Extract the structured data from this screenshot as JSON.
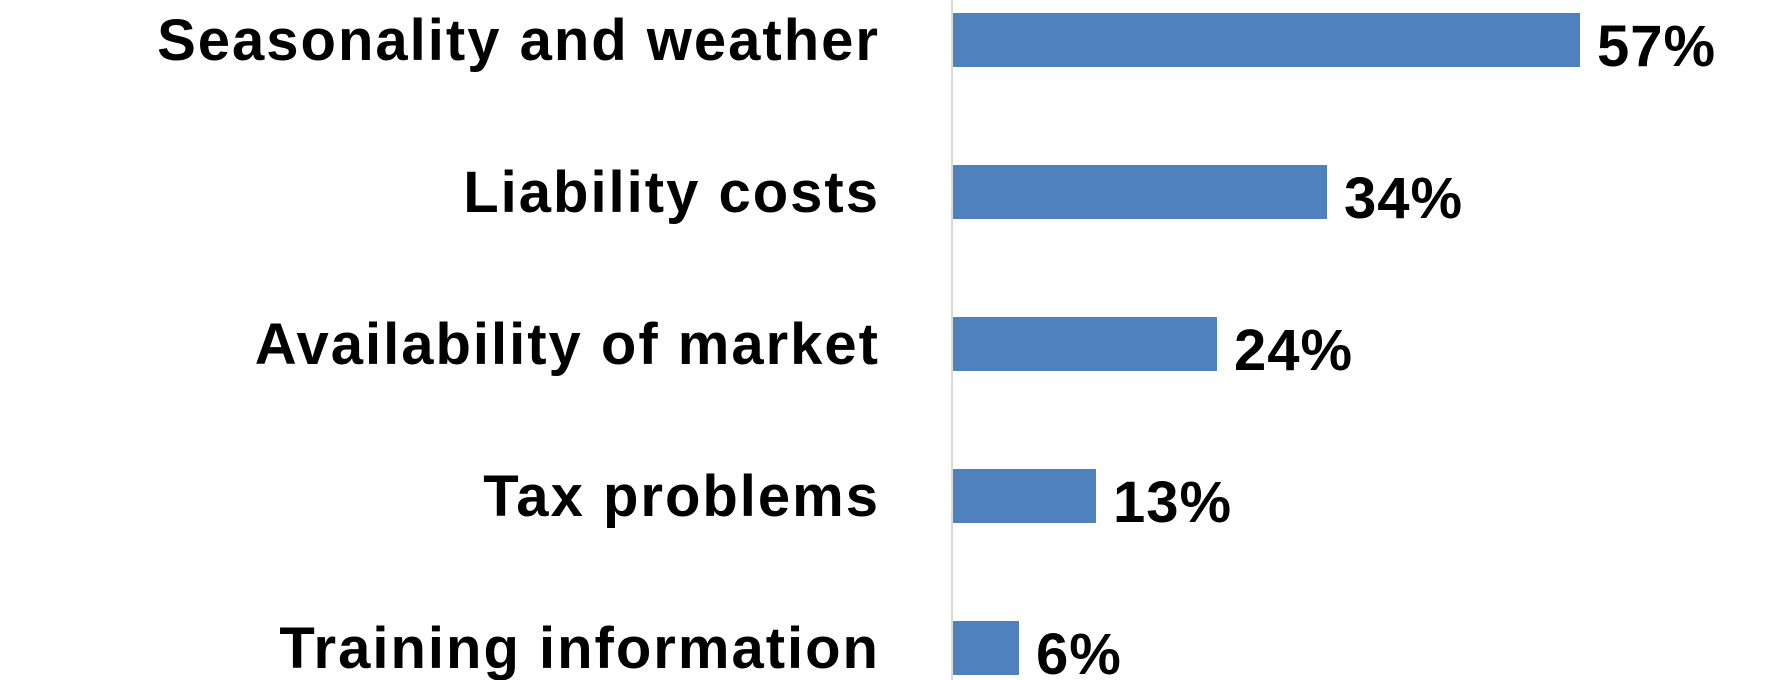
{
  "chart_data": {
    "type": "bar",
    "orientation": "horizontal",
    "title": "",
    "xlabel": "",
    "ylabel": "",
    "categories": [
      "Seasonality and weather",
      "Liability costs",
      "Availability of market",
      "Tax problems",
      "Training information"
    ],
    "values": [
      57,
      34,
      24,
      13,
      6
    ],
    "value_labels": [
      "57%",
      "34%",
      "24%",
      "13%",
      "6%"
    ],
    "unit": "%",
    "xlim": [
      0,
      70
    ],
    "grid": false,
    "legend": "none",
    "bar_color": "#4f81bd",
    "axis_color": "#d9d9d9",
    "text_color": "#000000"
  }
}
